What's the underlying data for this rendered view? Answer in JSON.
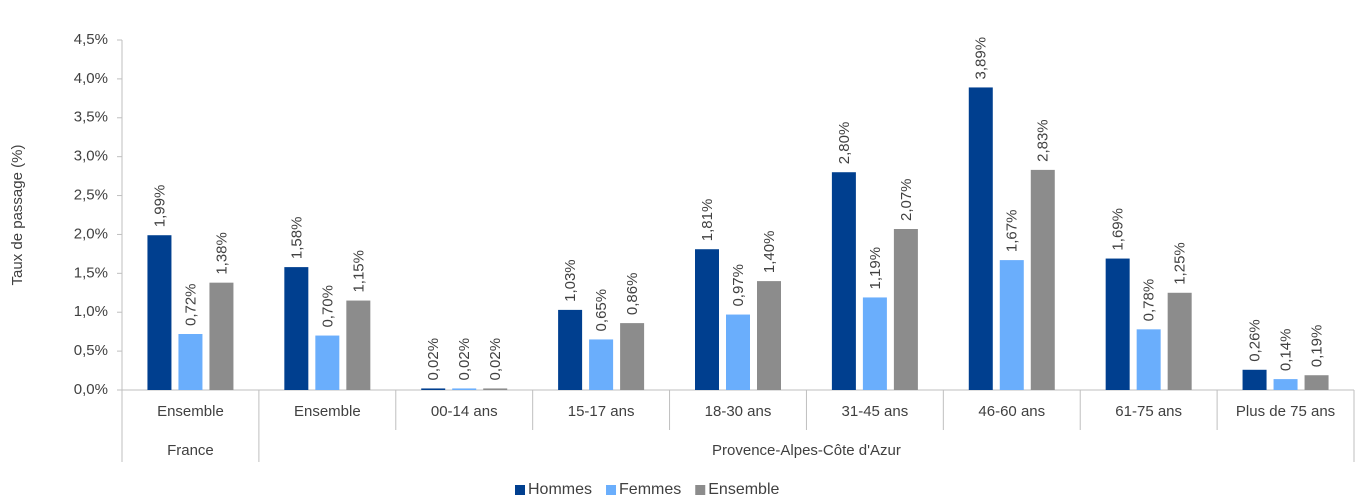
{
  "chart_data": {
    "type": "bar",
    "y_axis_label": "Taux de passage (%)",
    "groups": [
      {
        "name": "France",
        "categories": [
          "Ensemble"
        ]
      },
      {
        "name": "Provence-Alpes-Côte d'Azur",
        "categories": [
          "Ensemble",
          "00-14 ans",
          "15-17 ans",
          "18-30 ans",
          "31-45 ans",
          "46-60 ans",
          "61-75 ans",
          "Plus de 75 ans"
        ]
      }
    ],
    "series": [
      {
        "name": "Hommes",
        "color": "#003f8f",
        "values": [
          1.99,
          1.58,
          0.02,
          1.03,
          1.81,
          2.8,
          3.89,
          1.69,
          0.26
        ],
        "value_labels": [
          "1,99%",
          "1,58%",
          "0,02%",
          "1,03%",
          "1,81%",
          "2,80%",
          "3,89%",
          "1,69%",
          "0,26%"
        ]
      },
      {
        "name": "Femmes",
        "color": "#6aaefc",
        "values": [
          0.72,
          0.7,
          0.02,
          0.65,
          0.97,
          1.19,
          1.67,
          0.78,
          0.14
        ],
        "value_labels": [
          "0,72%",
          "0,70%",
          "0,02%",
          "0,65%",
          "0,97%",
          "1,19%",
          "1,67%",
          "0,78%",
          "0,14%"
        ]
      },
      {
        "name": "Ensemble",
        "color": "#8c8c8c",
        "values": [
          1.38,
          1.15,
          0.02,
          0.86,
          1.4,
          2.07,
          2.83,
          1.25,
          0.19
        ],
        "value_labels": [
          "1,38%",
          "1,15%",
          "0,02%",
          "0,86%",
          "1,40%",
          "2,07%",
          "2,83%",
          "1,25%",
          "0,19%"
        ]
      }
    ],
    "ylim": [
      0,
      4.5
    ],
    "yticks": [
      {
        "value": 0,
        "label": "0,0%"
      },
      {
        "value": 0.5,
        "label": "0,5%"
      },
      {
        "value": 1,
        "label": "1,0%"
      },
      {
        "value": 1.5,
        "label": "1,5%"
      },
      {
        "value": 2,
        "label": "2,0%"
      },
      {
        "value": 2.5,
        "label": "2,5%"
      },
      {
        "value": 3,
        "label": "3,0%"
      },
      {
        "value": 3.5,
        "label": "3,5%"
      },
      {
        "value": 4,
        "label": "4,0%"
      },
      {
        "value": 4.5,
        "label": "4,5%"
      }
    ],
    "grid": false,
    "legend": "bottom"
  }
}
